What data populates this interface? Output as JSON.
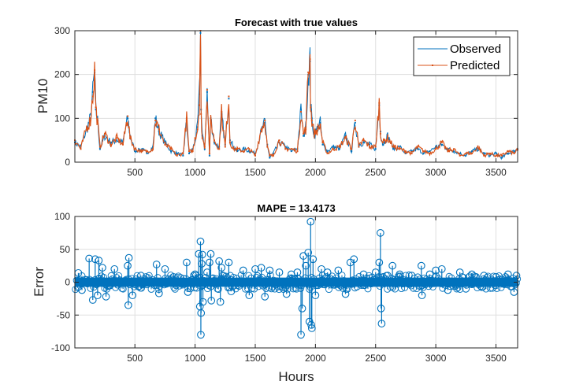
{
  "chart_data": [
    {
      "type": "line",
      "title": "Forecast with true values",
      "xlabel": "",
      "ylabel": "PM10",
      "xlim": [
        1,
        3680
      ],
      "ylim": [
        0,
        300
      ],
      "xticks": [
        500,
        1000,
        1500,
        2000,
        2500,
        3000,
        3500
      ],
      "xtick_labels": [
        "500",
        "1000",
        "1500",
        "2000",
        "2500",
        "3000",
        "3500"
      ],
      "yticks": [
        0,
        100,
        200,
        300
      ],
      "ytick_labels": [
        "0",
        "100",
        "200",
        "300"
      ],
      "grid": true,
      "legend": {
        "position": "top-right",
        "entries": [
          "Observed",
          "Predicted"
        ]
      },
      "series": [
        {
          "name": "Observed",
          "color": "#0072BD",
          "x": [
            1,
            50,
            100,
            130,
            150,
            165,
            175,
            190,
            210,
            250,
            300,
            350,
            400,
            440,
            460,
            500,
            560,
            600,
            650,
            670,
            700,
            750,
            800,
            850,
            900,
            930,
            950,
            980,
            1000,
            1020,
            1035,
            1045,
            1050,
            1060,
            1080,
            1100,
            1120,
            1130,
            1160,
            1200,
            1220,
            1250,
            1280,
            1290,
            1320,
            1350,
            1400,
            1450,
            1500,
            1550,
            1580,
            1600,
            1620,
            1650,
            1700,
            1750,
            1800,
            1850,
            1880,
            1900,
            1920,
            1940,
            1955,
            1960,
            1970,
            1990,
            2020,
            2040,
            2060,
            2100,
            2150,
            2200,
            2250,
            2300,
            2330,
            2360,
            2400,
            2450,
            2500,
            2530,
            2540,
            2560,
            2600,
            2650,
            2700,
            2750,
            2800,
            2850,
            2900,
            2950,
            3000,
            3050,
            3100,
            3150,
            3200,
            3250,
            3300,
            3350,
            3400,
            3450,
            3500,
            3550,
            3600,
            3650,
            3680
          ],
          "y": [
            45,
            35,
            75,
            100,
            160,
            205,
            120,
            95,
            30,
            60,
            45,
            50,
            45,
            100,
            60,
            25,
            30,
            20,
            35,
            100,
            70,
            45,
            25,
            20,
            15,
            95,
            20,
            30,
            50,
            80,
            155,
            295,
            120,
            60,
            30,
            160,
            15,
            100,
            45,
            35,
            110,
            40,
            145,
            50,
            35,
            25,
            30,
            25,
            20,
            70,
            90,
            40,
            10,
            20,
            45,
            35,
            25,
            30,
            120,
            60,
            80,
            200,
            230,
            130,
            100,
            60,
            80,
            90,
            40,
            25,
            35,
            30,
            60,
            25,
            90,
            40,
            45,
            40,
            30,
            130,
            70,
            40,
            60,
            30,
            35,
            20,
            25,
            30,
            20,
            25,
            35,
            40,
            30,
            25,
            20,
            15,
            25,
            30,
            20,
            15,
            20,
            10,
            20,
            25,
            30
          ]
        },
        {
          "name": "Predicted",
          "color": "#D95319",
          "x": [
            1,
            50,
            100,
            130,
            150,
            165,
            175,
            190,
            210,
            250,
            300,
            350,
            400,
            440,
            460,
            500,
            560,
            600,
            650,
            670,
            700,
            750,
            800,
            850,
            900,
            930,
            950,
            980,
            1000,
            1020,
            1035,
            1045,
            1050,
            1060,
            1080,
            1100,
            1120,
            1130,
            1160,
            1200,
            1220,
            1250,
            1280,
            1290,
            1320,
            1350,
            1400,
            1450,
            1500,
            1550,
            1580,
            1600,
            1620,
            1650,
            1700,
            1750,
            1800,
            1850,
            1880,
            1900,
            1920,
            1940,
            1955,
            1960,
            1970,
            1990,
            2020,
            2040,
            2060,
            2100,
            2150,
            2200,
            2250,
            2300,
            2330,
            2360,
            2400,
            2450,
            2500,
            2530,
            2540,
            2560,
            2600,
            2650,
            2700,
            2750,
            2800,
            2850,
            2900,
            2950,
            3000,
            3050,
            3100,
            3150,
            3200,
            3250,
            3300,
            3350,
            3400,
            3450,
            3500,
            3550,
            3600,
            3650,
            3680
          ],
          "y": [
            50,
            30,
            80,
            95,
            150,
            210,
            125,
            90,
            35,
            65,
            40,
            55,
            40,
            105,
            55,
            30,
            25,
            25,
            30,
            95,
            75,
            40,
            30,
            15,
            20,
            100,
            25,
            25,
            55,
            75,
            130,
            300,
            110,
            55,
            35,
            165,
            20,
            95,
            50,
            30,
            115,
            35,
            150,
            45,
            30,
            30,
            25,
            30,
            15,
            75,
            95,
            35,
            15,
            15,
            50,
            30,
            30,
            25,
            115,
            65,
            75,
            205,
            235,
            125,
            95,
            65,
            75,
            85,
            45,
            20,
            30,
            35,
            55,
            30,
            95,
            35,
            50,
            35,
            35,
            135,
            65,
            45,
            55,
            35,
            30,
            25,
            20,
            35,
            25,
            20,
            30,
            45,
            25,
            30,
            15,
            20,
            20,
            35,
            15,
            20,
            15,
            15,
            25,
            20,
            28
          ]
        }
      ]
    },
    {
      "type": "stem",
      "title": "MAPE = 13.4173",
      "xlabel": "Hours",
      "ylabel": "Error",
      "xlim": [
        1,
        3680
      ],
      "ylim": [
        -100,
        100
      ],
      "xticks": [
        500,
        1000,
        1500,
        2000,
        2500,
        3000,
        3500
      ],
      "xtick_labels": [
        "500",
        "1000",
        "1500",
        "2000",
        "2500",
        "3000",
        "3500"
      ],
      "yticks": [
        -100,
        -50,
        0,
        50,
        100
      ],
      "ytick_labels": [
        "-100",
        "-50",
        "0",
        "50",
        "100"
      ],
      "grid": true,
      "series": [
        {
          "name": "Error",
          "color": "#0072BD",
          "x": [
            30,
            60,
            120,
            150,
            170,
            190,
            200,
            230,
            260,
            330,
            440,
            445,
            450,
            480,
            550,
            680,
            700,
            750,
            820,
            930,
            940,
            1000,
            1030,
            1040,
            1045,
            1048,
            1050,
            1055,
            1060,
            1065,
            1100,
            1120,
            1130,
            1135,
            1200,
            1210,
            1220,
            1280,
            1300,
            1400,
            1450,
            1500,
            1550,
            1580,
            1620,
            1700,
            1760,
            1800,
            1850,
            1880,
            1890,
            1900,
            1920,
            1940,
            1950,
            1960,
            1965,
            1970,
            1980,
            2000,
            2050,
            2100,
            2190,
            2250,
            2290,
            2320,
            2400,
            2500,
            2530,
            2540,
            2545,
            2550,
            2600,
            2640,
            2700,
            2800,
            2880,
            2885,
            2950,
            3000,
            3050,
            3100,
            3200,
            3250,
            3300,
            3400,
            3500,
            3600,
            3650,
            3670
          ],
          "y": [
            14,
            -12,
            36,
            -27,
            35,
            -20,
            33,
            22,
            -22,
            20,
            25,
            -35,
            37,
            -20,
            10,
            27,
            -17,
            20,
            8,
            30,
            -15,
            12,
            43,
            -37,
            62,
            -80,
            -47,
            28,
            42,
            -30,
            15,
            30,
            43,
            -28,
            32,
            -30,
            22,
            30,
            -14,
            18,
            -20,
            20,
            22,
            -22,
            18,
            15,
            -18,
            12,
            15,
            -80,
            -40,
            40,
            25,
            45,
            -60,
            92,
            -65,
            -70,
            35,
            -20,
            20,
            15,
            18,
            -18,
            30,
            35,
            12,
            15,
            30,
            75,
            -40,
            -63,
            10,
            25,
            12,
            10,
            25,
            -20,
            12,
            18,
            20,
            -12,
            15,
            -10,
            12,
            10,
            8,
            12,
            -15,
            10
          ]
        }
      ]
    }
  ]
}
